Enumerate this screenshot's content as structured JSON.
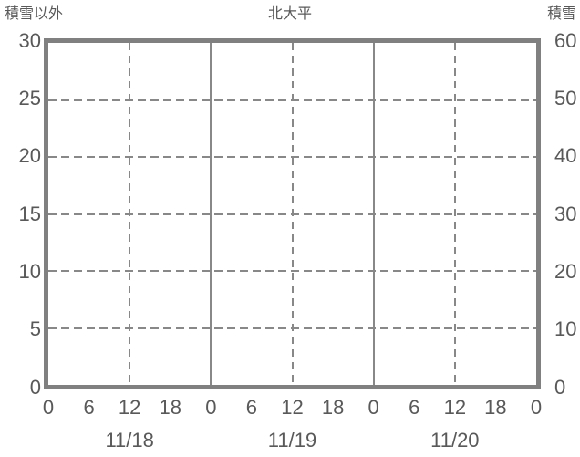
{
  "header": {
    "left_axis_title": "積雪以外",
    "chart_title": "北大平",
    "right_axis_title": "積雪"
  },
  "chart_data": {
    "type": "line",
    "title": "北大平",
    "series": [],
    "plot_is_empty": true,
    "legend": "none",
    "x_axis": {
      "unit": "hours",
      "range_hours": [
        0,
        72
      ],
      "tick_interval_hours": 6,
      "ticks": [
        {
          "hour": 0,
          "label": "0"
        },
        {
          "hour": 6,
          "label": "6"
        },
        {
          "hour": 12,
          "label": "12"
        },
        {
          "hour": 18,
          "label": "18"
        },
        {
          "hour": 24,
          "label": "0"
        },
        {
          "hour": 30,
          "label": "6"
        },
        {
          "hour": 36,
          "label": "12"
        },
        {
          "hour": 42,
          "label": "18"
        },
        {
          "hour": 48,
          "label": "0"
        },
        {
          "hour": 54,
          "label": "6"
        },
        {
          "hour": 60,
          "label": "12"
        },
        {
          "hour": 66,
          "label": "18"
        },
        {
          "hour": 72,
          "label": "0"
        }
      ],
      "date_labels": [
        {
          "label": "11/18",
          "center_hour": 12
        },
        {
          "label": "11/19",
          "center_hour": 36
        },
        {
          "label": "11/20",
          "center_hour": 60
        }
      ]
    },
    "y_axis_left": {
      "label": "積雪以外",
      "range": [
        0,
        30
      ],
      "ticks": [
        0,
        5,
        10,
        15,
        20,
        25,
        30
      ]
    },
    "y_axis_right": {
      "label": "積雪",
      "range": [
        0,
        60
      ],
      "ticks": [
        0,
        10,
        20,
        30,
        40,
        50,
        60
      ]
    },
    "grid": {
      "horizontal_dashed_left_values": [
        5,
        10,
        15,
        20,
        25
      ],
      "vertical_dashed_hours": [
        12,
        36,
        60
      ],
      "vertical_solid_hours": [
        24,
        48
      ]
    }
  },
  "colors": {
    "background": "#ffffff",
    "axis_frame": "#808080",
    "gridline": "#888888",
    "text": "#595959"
  }
}
